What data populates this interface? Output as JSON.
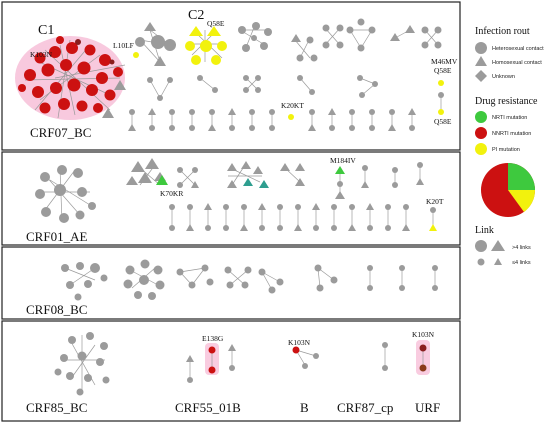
{
  "panels": [
    {
      "subtype": "CRF07_BC"
    },
    {
      "subtype": "CRF01_AE"
    },
    {
      "subtype": "CRF08_BC"
    },
    {
      "subtype": "CRF85_BC",
      "extra_labels": [
        "CRF55_01B",
        "B",
        "CRF87_cp",
        "URF"
      ]
    }
  ],
  "cluster_labels": [
    "C1",
    "C2"
  ],
  "mutation_labels": {
    "crf07": [
      "K103N",
      "L10LF",
      "Q58E",
      "M46MV",
      "Q58E",
      "K20KT",
      "Q58E"
    ],
    "crf01": [
      "K70KR",
      "M184IV",
      "K20T"
    ],
    "crf85_group": [
      "E138G",
      "K103N",
      "K103N"
    ]
  },
  "legend": {
    "infection_title": "Infection rout",
    "infection_items": [
      "Heterosexual contact",
      "Homosexual contact",
      "Unknown"
    ],
    "drug_title": "Drug resistance",
    "drug_items": [
      "NRTI mutation",
      "NNRTI mutation",
      "PI mutation"
    ],
    "link_title": "Link",
    "link_items": [
      ">4 links",
      "≤4 links"
    ]
  },
  "colors": {
    "node_gray": "#9b9b9b",
    "nrti": "#3ec93e",
    "nnrti": "#cc1111",
    "pi": "#f2f20d",
    "pink_halo": "#f2a6c8"
  }
}
